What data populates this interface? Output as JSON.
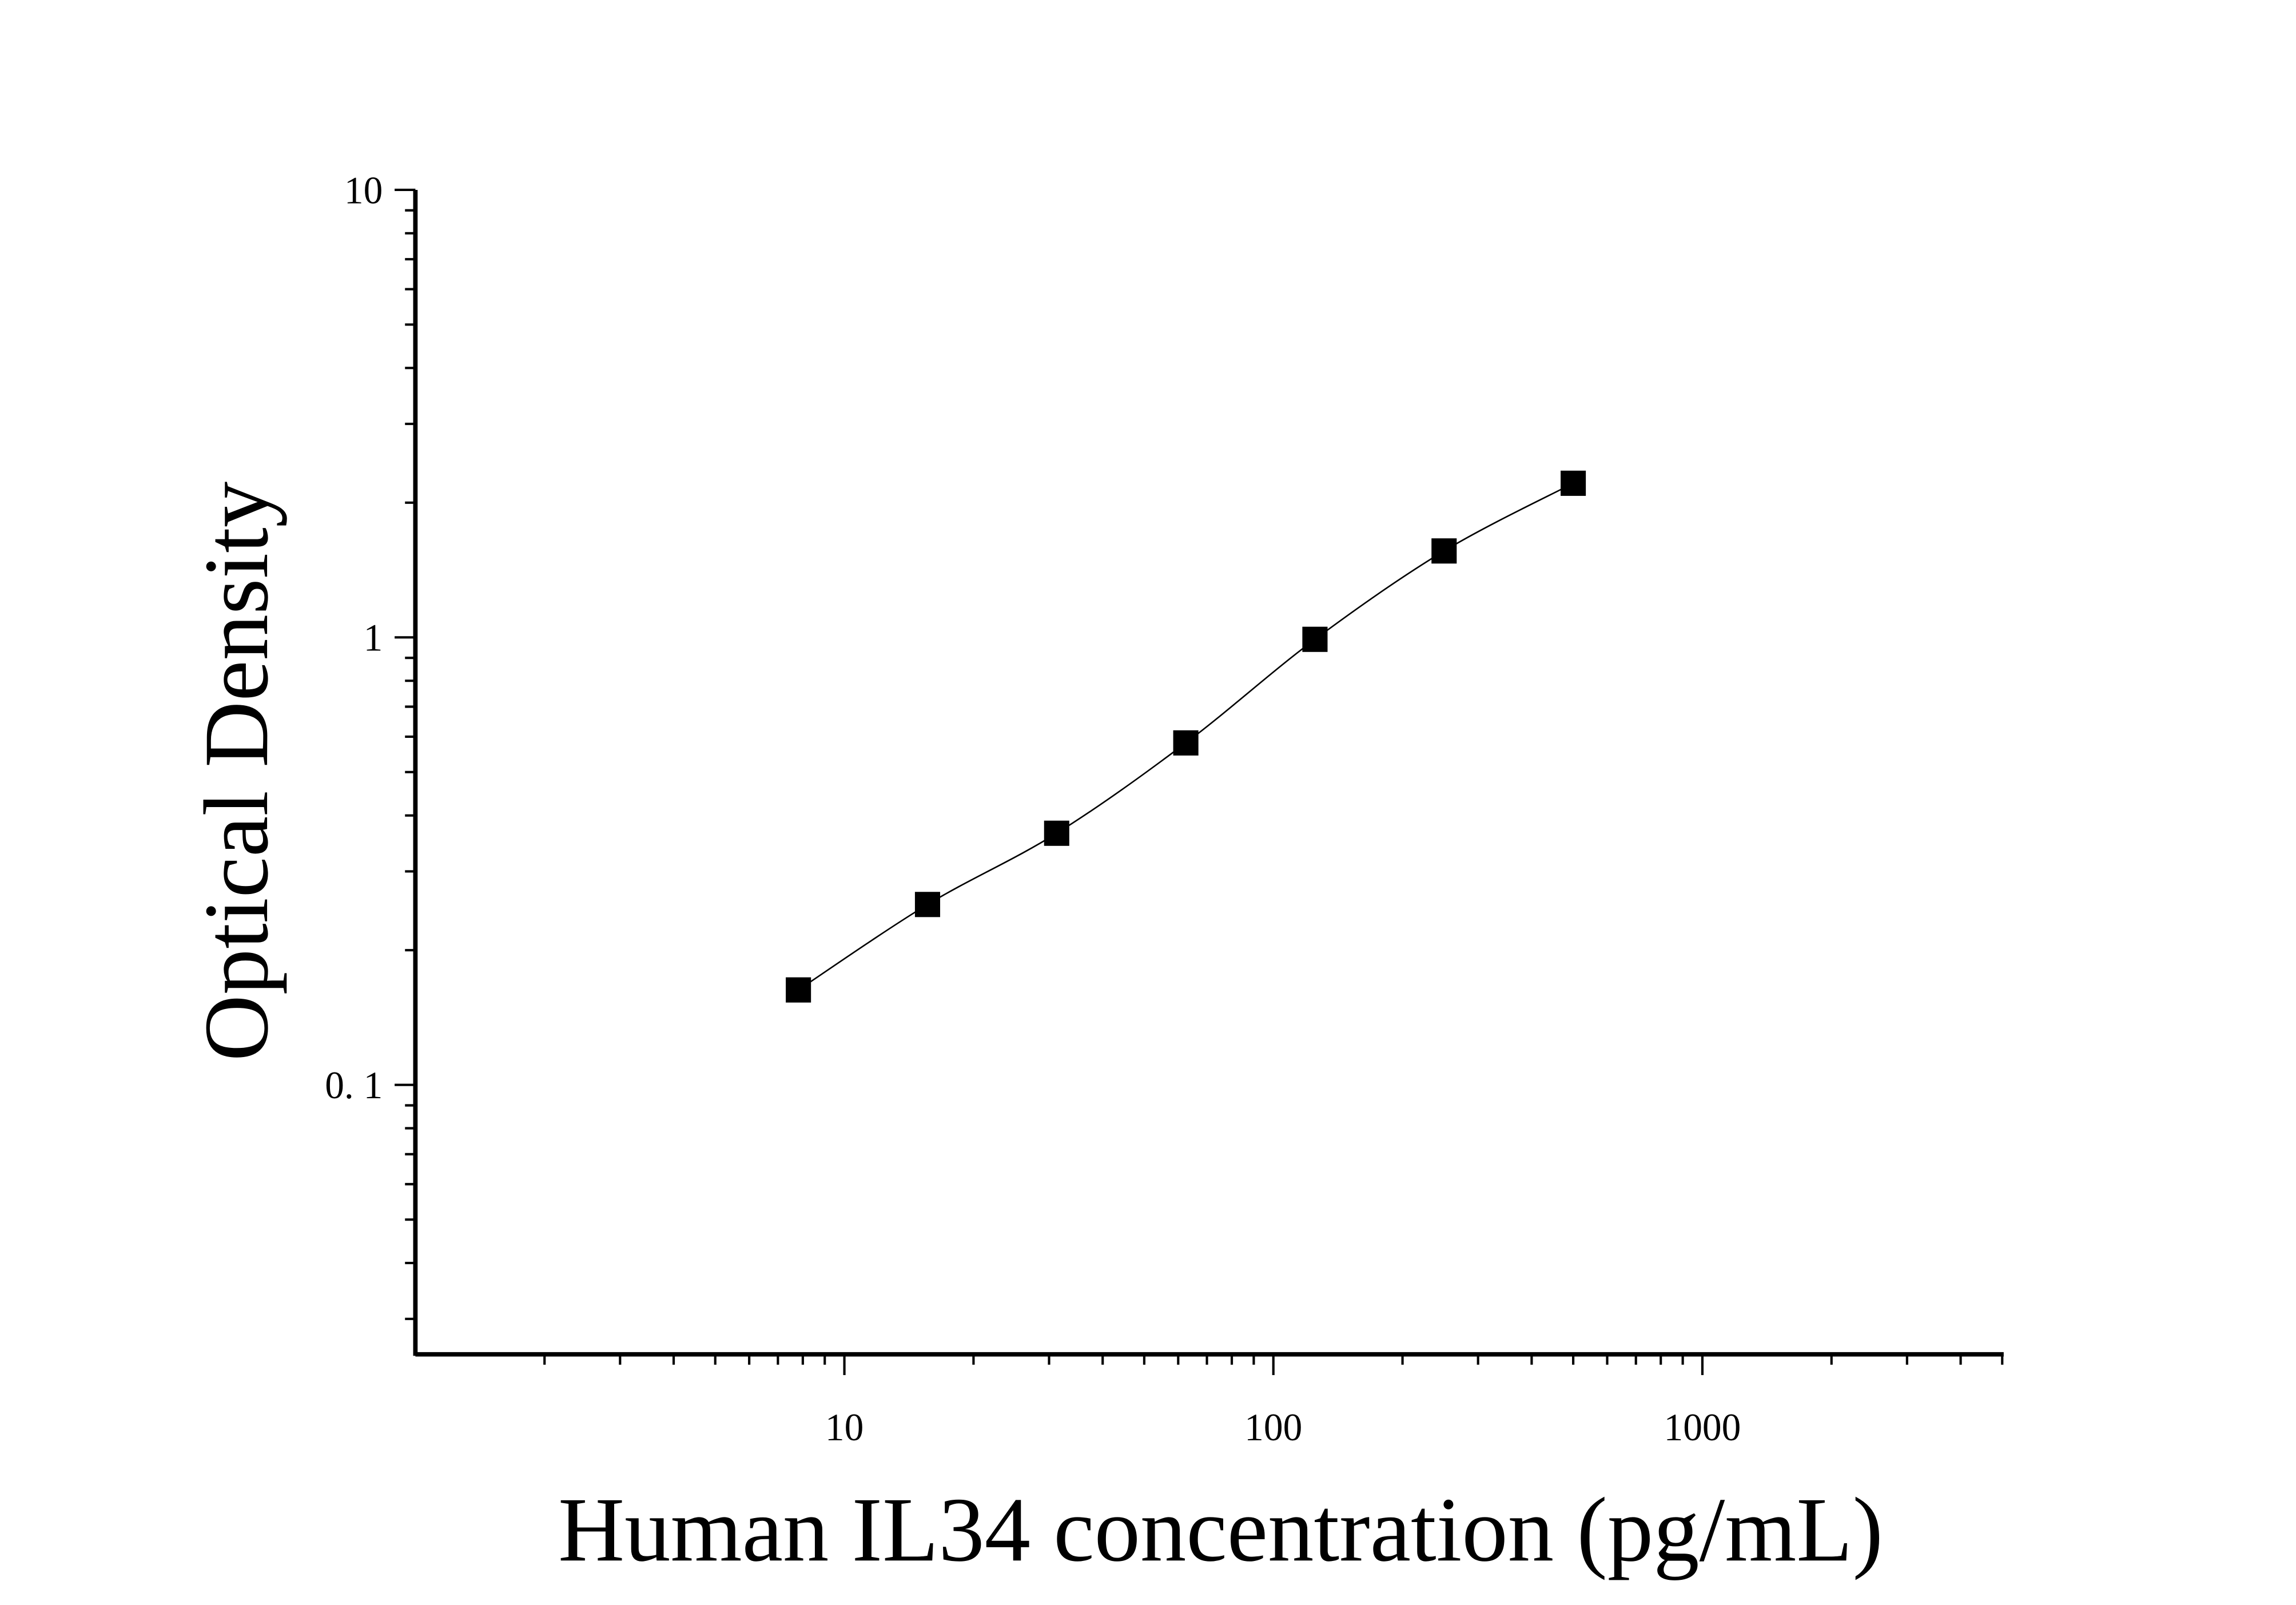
{
  "chart_data": {
    "type": "scatter",
    "title": "",
    "xlabel": "Human IL34 concentration (pg/mL)",
    "ylabel": "Optical Density",
    "x_scale": "log",
    "y_scale": "log",
    "xlim": [
      1,
      5000
    ],
    "ylim": [
      0.025,
      10
    ],
    "x_ticks": [
      {
        "value": 10,
        "label": "10"
      },
      {
        "value": 100,
        "label": "100"
      },
      {
        "value": 1000,
        "label": "1000"
      }
    ],
    "y_ticks": [
      {
        "value": 10,
        "label": "10"
      },
      {
        "value": 1,
        "label": "1"
      },
      {
        "value": 0.1,
        "label": "0. 1"
      }
    ],
    "grid": false,
    "legend": "none",
    "marker": "square",
    "fit_line": true,
    "color": "#000000",
    "series": [
      {
        "x": [
          7.8125,
          15.625,
          31.25,
          62.5,
          125,
          250,
          500
        ],
        "y": [
          0.163,
          0.253,
          0.365,
          0.581,
          0.99,
          1.56,
          2.21
        ]
      }
    ]
  }
}
